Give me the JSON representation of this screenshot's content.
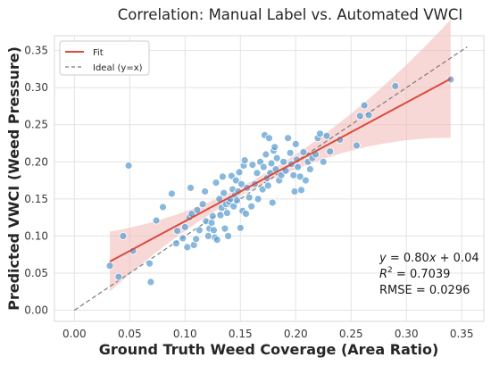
{
  "chart_data": {
    "type": "scatter",
    "title": "Correlation: Manual Label vs. Automated VWCI",
    "xlabel": "Ground Truth Weed Coverage (Area Ratio)",
    "ylabel": "Predicted VWCI (Weed Pressure)",
    "xlim": [
      -0.018,
      0.37
    ],
    "ylim": [
      -0.015,
      0.37
    ],
    "x_ticks": [
      "0.00",
      "0.05",
      "0.10",
      "0.15",
      "0.20",
      "0.25",
      "0.30",
      "0.35"
    ],
    "y_ticks": [
      "0.00",
      "0.05",
      "0.10",
      "0.15",
      "0.20",
      "0.25",
      "0.30",
      "0.35"
    ],
    "grid": true,
    "legend_position": "top-left",
    "legend": [
      {
        "label": "Fit",
        "style": "solid",
        "color": "#d94b3e"
      },
      {
        "label": "Ideal (y=x)",
        "style": "dashed",
        "color": "#7a7a7a"
      }
    ],
    "fit": {
      "slope": 0.8,
      "intercept": 0.04,
      "x_range": [
        0.032,
        0.34
      ]
    },
    "ideal": {
      "x_range": [
        0.0,
        0.355
      ]
    },
    "annotations": {
      "equation": "y = 0.80x + 0.04",
      "r2": "R² = 0.7039",
      "rmse": "RMSE = 0.0296"
    },
    "point_color": "#5a9cd0",
    "fit_color": "#d94b3e",
    "band_color": "#f2b8b4",
    "points": [
      [
        0.032,
        0.06
      ],
      [
        0.04,
        0.045
      ],
      [
        0.044,
        0.1
      ],
      [
        0.049,
        0.195
      ],
      [
        0.053,
        0.08
      ],
      [
        0.068,
        0.063
      ],
      [
        0.069,
        0.038
      ],
      [
        0.074,
        0.121
      ],
      [
        0.08,
        0.139
      ],
      [
        0.088,
        0.157
      ],
      [
        0.092,
        0.09
      ],
      [
        0.093,
        0.107
      ],
      [
        0.098,
        0.097
      ],
      [
        0.1,
        0.112
      ],
      [
        0.102,
        0.085
      ],
      [
        0.104,
        0.125
      ],
      [
        0.105,
        0.165
      ],
      [
        0.106,
        0.13
      ],
      [
        0.108,
        0.088
      ],
      [
        0.11,
        0.096
      ],
      [
        0.111,
        0.135
      ],
      [
        0.113,
        0.108
      ],
      [
        0.116,
        0.143
      ],
      [
        0.118,
        0.16
      ],
      [
        0.119,
        0.12
      ],
      [
        0.121,
        0.1
      ],
      [
        0.122,
        0.11
      ],
      [
        0.124,
        0.118
      ],
      [
        0.125,
        0.127
      ],
      [
        0.126,
        0.108
      ],
      [
        0.127,
        0.098
      ],
      [
        0.128,
        0.172
      ],
      [
        0.129,
        0.095
      ],
      [
        0.131,
        0.15
      ],
      [
        0.132,
        0.128
      ],
      [
        0.133,
        0.138
      ],
      [
        0.134,
        0.18
      ],
      [
        0.135,
        0.158
      ],
      [
        0.136,
        0.11
      ],
      [
        0.137,
        0.143
      ],
      [
        0.138,
        0.131
      ],
      [
        0.139,
        0.1
      ],
      [
        0.14,
        0.146
      ],
      [
        0.141,
        0.15
      ],
      [
        0.142,
        0.181
      ],
      [
        0.143,
        0.163
      ],
      [
        0.144,
        0.14
      ],
      [
        0.145,
        0.155
      ],
      [
        0.146,
        0.175
      ],
      [
        0.147,
        0.148
      ],
      [
        0.148,
        0.16
      ],
      [
        0.149,
        0.186
      ],
      [
        0.15,
        0.111
      ],
      [
        0.151,
        0.17
      ],
      [
        0.152,
        0.134
      ],
      [
        0.153,
        0.195
      ],
      [
        0.154,
        0.202
      ],
      [
        0.155,
        0.13
      ],
      [
        0.156,
        0.165
      ],
      [
        0.158,
        0.152
      ],
      [
        0.16,
        0.14
      ],
      [
        0.161,
        0.196
      ],
      [
        0.163,
        0.17
      ],
      [
        0.165,
        0.185
      ],
      [
        0.166,
        0.15
      ],
      [
        0.168,
        0.2
      ],
      [
        0.17,
        0.163
      ],
      [
        0.171,
        0.193
      ],
      [
        0.172,
        0.236
      ],
      [
        0.173,
        0.21
      ],
      [
        0.174,
        0.178
      ],
      [
        0.175,
        0.168
      ],
      [
        0.176,
        0.232
      ],
      [
        0.177,
        0.185
      ],
      [
        0.178,
        0.198
      ],
      [
        0.179,
        0.145
      ],
      [
        0.18,
        0.215
      ],
      [
        0.181,
        0.22
      ],
      [
        0.182,
        0.19
      ],
      [
        0.183,
        0.205
      ],
      [
        0.185,
        0.175
      ],
      [
        0.187,
        0.182
      ],
      [
        0.189,
        0.2
      ],
      [
        0.191,
        0.188
      ],
      [
        0.193,
        0.232
      ],
      [
        0.195,
        0.212
      ],
      [
        0.196,
        0.197
      ],
      [
        0.198,
        0.182
      ],
      [
        0.199,
        0.16
      ],
      [
        0.2,
        0.224
      ],
      [
        0.201,
        0.203
      ],
      [
        0.202,
        0.193
      ],
      [
        0.204,
        0.18
      ],
      [
        0.205,
        0.162
      ],
      [
        0.207,
        0.213
      ],
      [
        0.209,
        0.175
      ],
      [
        0.211,
        0.2
      ],
      [
        0.213,
        0.19
      ],
      [
        0.215,
        0.205
      ],
      [
        0.218,
        0.21
      ],
      [
        0.22,
        0.232
      ],
      [
        0.222,
        0.238
      ],
      [
        0.225,
        0.2
      ],
      [
        0.228,
        0.235
      ],
      [
        0.231,
        0.214
      ],
      [
        0.24,
        0.23
      ],
      [
        0.255,
        0.222
      ],
      [
        0.258,
        0.262
      ],
      [
        0.262,
        0.276
      ],
      [
        0.266,
        0.263
      ],
      [
        0.29,
        0.302
      ],
      [
        0.34,
        0.311
      ]
    ]
  }
}
